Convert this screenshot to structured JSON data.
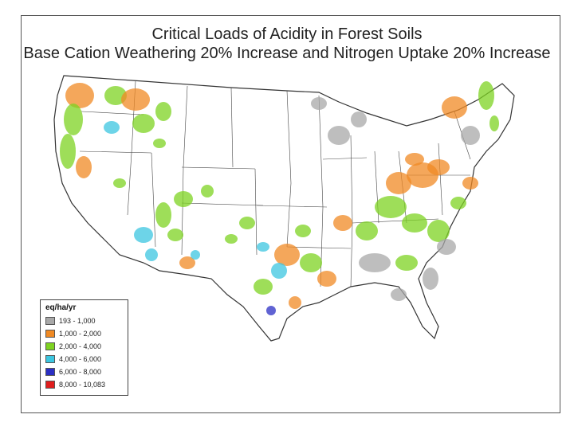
{
  "title": {
    "line1": "Critical Loads of Acidity in Forest Soils",
    "line2": "Base Cation Weathering 20% Increase and Nitrogen Uptake 20% Increase"
  },
  "legend": {
    "title": "eq/ha/yr",
    "items": [
      {
        "label": "193 - 1,000",
        "color": "#a8a8a8"
      },
      {
        "label": "1,000 - 2,000",
        "color": "#f08a24"
      },
      {
        "label": "2,000 - 4,000",
        "color": "#7ed321"
      },
      {
        "label": "4,000 - 6,000",
        "color": "#3cc6e0"
      },
      {
        "label": "6,000 - 8,000",
        "color": "#2b2fc4"
      },
      {
        "label": "8,000 - 10,083",
        "color": "#e01e1e"
      }
    ]
  },
  "colors": {
    "state_border": "#333333",
    "frame": "#555555"
  }
}
